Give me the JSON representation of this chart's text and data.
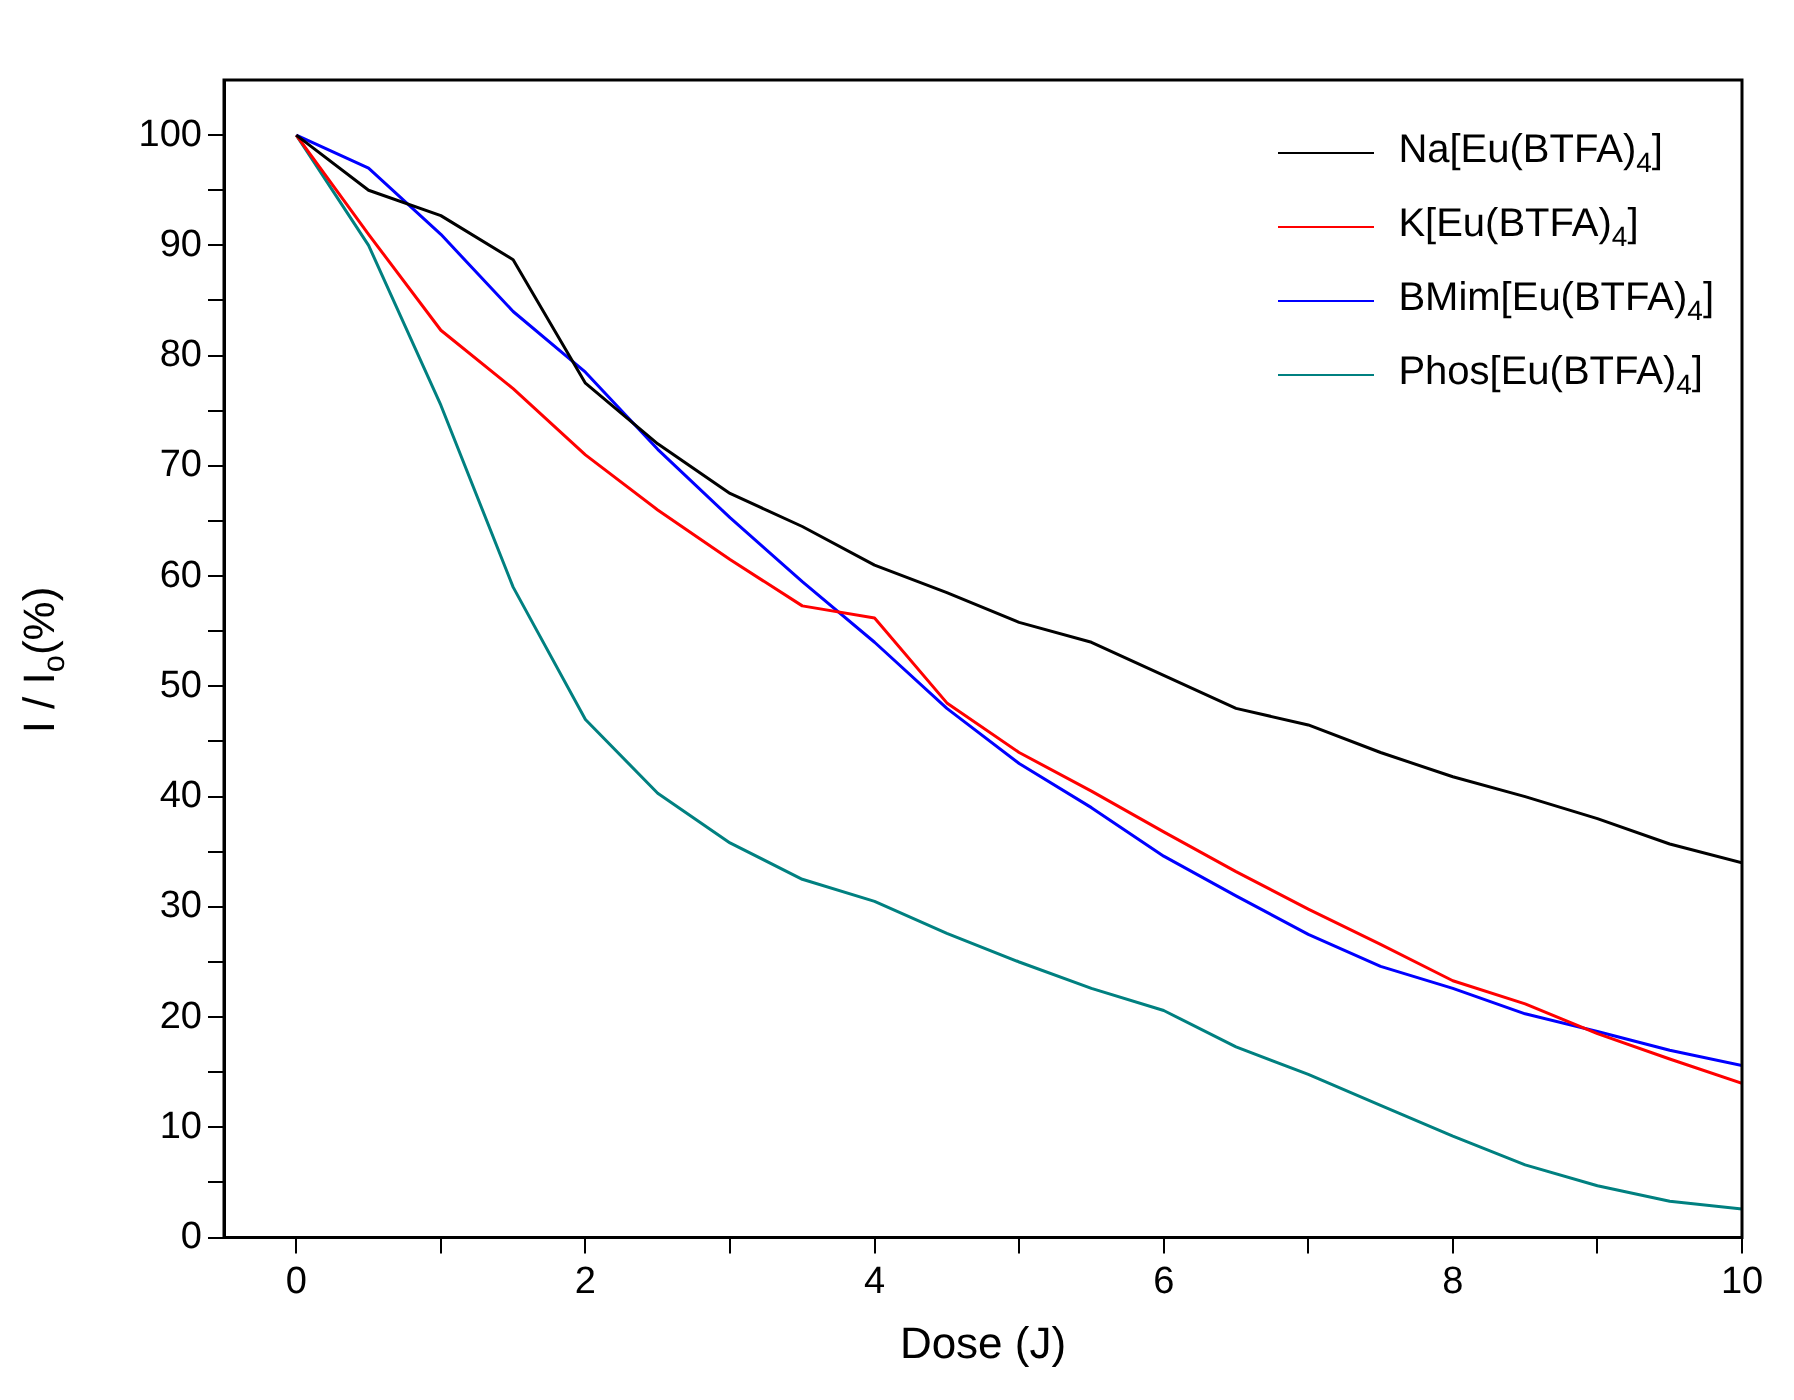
{
  "chart_data": {
    "type": "line",
    "xlabel": "Dose (J)",
    "ylabel": "I / I$_{o}$(%)",
    "x": [
      0,
      0.5,
      1,
      1.5,
      2,
      2.5,
      3,
      3.5,
      4,
      4.5,
      5,
      5.5,
      6,
      6.5,
      7,
      7.5,
      8,
      8.5,
      9,
      9.5,
      10
    ],
    "series": [
      {
        "name": "Na[Eu(BTFA)$_{4}$]",
        "color": "#000000",
        "values": [
          100,
          95,
          92.7,
          88.7,
          77.5,
          72,
          67.5,
          64.5,
          61,
          58.5,
          55.8,
          54,
          51,
          48,
          46.5,
          44,
          41.8,
          40,
          38,
          35.7,
          34
        ]
      },
      {
        "name": "K[Eu(BTFA)$_{4}$]",
        "color": "#ff0000",
        "values": [
          100,
          91,
          82.3,
          77,
          71,
          66,
          61.5,
          57.3,
          56.2,
          48.5,
          44,
          40.5,
          36.8,
          33.2,
          29.8,
          26.6,
          23.3,
          21.2,
          18.5,
          16.2,
          14
        ]
      },
      {
        "name": "BMim[Eu(BTFA)$_{4}$]",
        "color": "#0000ff",
        "values": [
          100,
          97,
          91,
          84,
          78.5,
          71.5,
          65.3,
          59.5,
          54,
          48,
          43,
          39,
          34.6,
          31,
          27.5,
          24.6,
          22.6,
          20.3,
          18.7,
          17,
          15.6
        ]
      },
      {
        "name": "Phos[Eu(BTFA)$_{4}$]",
        "color": "#008080",
        "values": [
          100,
          90,
          75.5,
          59,
          47,
          40.3,
          35.8,
          32.5,
          30.5,
          27.6,
          25,
          22.6,
          20.6,
          17.3,
          14.8,
          12,
          9.2,
          6.6,
          4.7,
          3.3,
          2.6
        ]
      }
    ],
    "xlim": [
      -0.5,
      10
    ],
    "xticks": [
      0,
      {
        "value": 1,
        "label": null
      },
      2,
      {
        "value": 3,
        "label": null
      },
      4,
      {
        "value": 5,
        "label": null
      },
      6,
      {
        "value": 7,
        "label": null
      },
      8,
      {
        "value": 9,
        "label": null
      },
      10
    ],
    "ylim": [
      0,
      105
    ],
    "yticks": [
      0,
      {
        "value": 5,
        "label": null
      },
      10,
      {
        "value": 15,
        "label": null
      },
      20,
      {
        "value": 25,
        "label": null
      },
      30,
      {
        "value": 35,
        "label": null
      },
      40,
      {
        "value": 45,
        "label": null
      },
      50,
      {
        "value": 55,
        "label": null
      },
      60,
      {
        "value": 65,
        "label": null
      },
      70,
      {
        "value": 75,
        "label": null
      },
      80,
      {
        "value": 85,
        "label": null
      },
      90,
      {
        "value": 95,
        "label": null
      },
      100
    ],
    "grid": false,
    "legend": "top right",
    "marker": "none",
    "line_style": "solid"
  }
}
